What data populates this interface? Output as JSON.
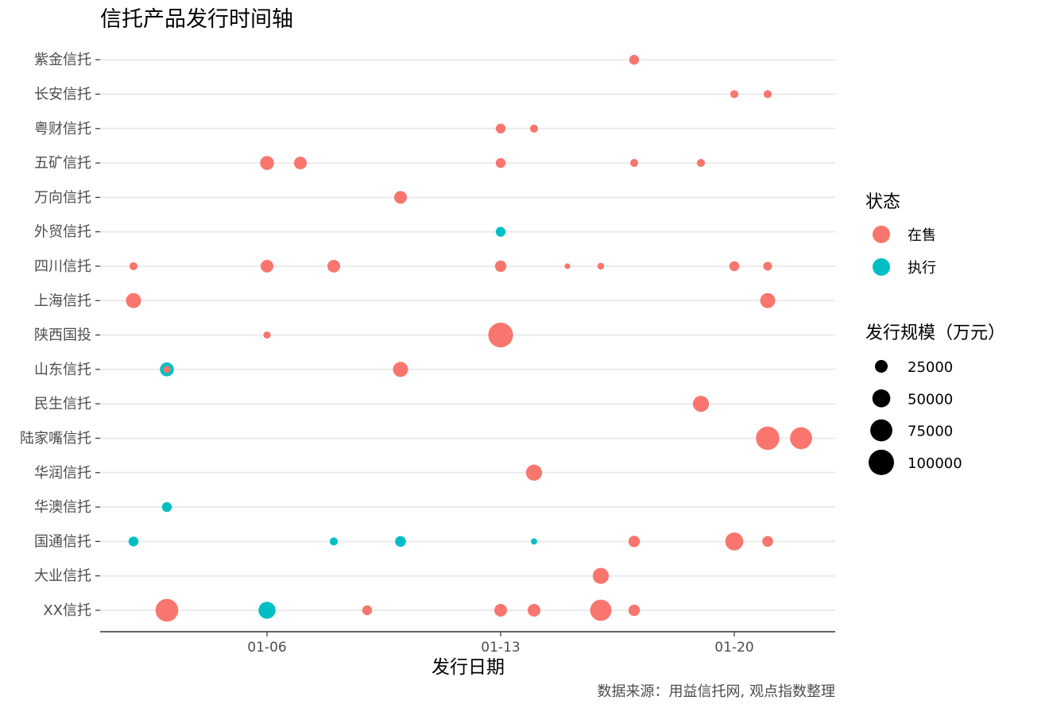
{
  "chart_data": {
    "type": "scatter",
    "title": "信托产品发行时间轴",
    "xlabel": "发行日期",
    "ylabel": "",
    "caption": "数据来源：用益信托网, 观点指数整理",
    "x_ticks": [
      "01-06",
      "01-13",
      "01-20"
    ],
    "xlim": [
      "01-01",
      "01-23"
    ],
    "categories": [
      "XX信托",
      "大业信托",
      "国通信托",
      "华澳信托",
      "华润信托",
      "陆家嘴信托",
      "民生信托",
      "山东信托",
      "陕西国投",
      "上海信托",
      "四川信托",
      "外贸信托",
      "万向信托",
      "五矿信托",
      "粤财信托",
      "长安信托",
      "紫金信托"
    ],
    "grid": "horizontal",
    "status_legend": {
      "title": "状态",
      "items": [
        {
          "label": "在售",
          "color": "#F8766D"
        },
        {
          "label": "执行",
          "color": "#00BFC4"
        }
      ]
    },
    "size_legend": {
      "title": "发行规模（万元）",
      "values": [
        25000,
        50000,
        75000,
        100000
      ]
    },
    "points": [
      {
        "issuer": "紫金信托",
        "date": "01-17",
        "status": "在售",
        "size": 15000
      },
      {
        "issuer": "长安信托",
        "date": "01-20",
        "status": "在售",
        "size": 10000
      },
      {
        "issuer": "长安信托",
        "date": "01-21",
        "status": "在售",
        "size": 10000
      },
      {
        "issuer": "粤财信托",
        "date": "01-13",
        "status": "在售",
        "size": 15000
      },
      {
        "issuer": "粤财信托",
        "date": "01-14",
        "status": "在售",
        "size": 10000
      },
      {
        "issuer": "五矿信托",
        "date": "01-06",
        "status": "在售",
        "size": 30000
      },
      {
        "issuer": "五矿信托",
        "date": "01-07",
        "status": "在售",
        "size": 25000
      },
      {
        "issuer": "五矿信托",
        "date": "01-13",
        "status": "在售",
        "size": 15000
      },
      {
        "issuer": "五矿信托",
        "date": "01-17",
        "status": "在售",
        "size": 10000
      },
      {
        "issuer": "五矿信托",
        "date": "01-19",
        "status": "在售",
        "size": 10000
      },
      {
        "issuer": "万向信托",
        "date": "01-10",
        "status": "在售",
        "size": 25000
      },
      {
        "issuer": "外贸信托",
        "date": "01-13",
        "status": "执行",
        "size": 15000
      },
      {
        "issuer": "四川信托",
        "date": "01-02",
        "status": "在售",
        "size": 10000
      },
      {
        "issuer": "四川信托",
        "date": "01-06",
        "status": "在售",
        "size": 25000
      },
      {
        "issuer": "四川信托",
        "date": "01-08",
        "status": "在售",
        "size": 25000
      },
      {
        "issuer": "四川信托",
        "date": "01-13",
        "status": "在售",
        "size": 20000
      },
      {
        "issuer": "四川信托",
        "date": "01-15",
        "status": "在售",
        "size": 5000
      },
      {
        "issuer": "四川信托",
        "date": "01-16",
        "status": "在售",
        "size": 7000
      },
      {
        "issuer": "四川信托",
        "date": "01-20",
        "status": "在售",
        "size": 15000
      },
      {
        "issuer": "四川信托",
        "date": "01-21",
        "status": "在售",
        "size": 12000
      },
      {
        "issuer": "上海信托",
        "date": "01-02",
        "status": "在售",
        "size": 35000
      },
      {
        "issuer": "上海信托",
        "date": "01-21",
        "status": "在售",
        "size": 35000
      },
      {
        "issuer": "陕西国投",
        "date": "01-06",
        "status": "在售",
        "size": 8000
      },
      {
        "issuer": "陕西国投",
        "date": "01-13",
        "status": "在售",
        "size": 95000
      },
      {
        "issuer": "山东信托",
        "date": "01-03",
        "status": "执行",
        "size": 30000
      },
      {
        "issuer": "山东信托",
        "date": "01-03",
        "status": "在售",
        "size": 8000
      },
      {
        "issuer": "山东信托",
        "date": "01-10",
        "status": "在售",
        "size": 35000
      },
      {
        "issuer": "民生信托",
        "date": "01-19",
        "status": "在售",
        "size": 40000
      },
      {
        "issuer": "陆家嘴信托",
        "date": "01-21",
        "status": "在售",
        "size": 85000
      },
      {
        "issuer": "陆家嘴信托",
        "date": "01-22",
        "status": "在售",
        "size": 75000
      },
      {
        "issuer": "华润信托",
        "date": "01-14",
        "status": "在售",
        "size": 40000
      },
      {
        "issuer": "华澳信托",
        "date": "01-03",
        "status": "执行",
        "size": 15000
      },
      {
        "issuer": "国通信托",
        "date": "01-02",
        "status": "执行",
        "size": 15000
      },
      {
        "issuer": "国通信托",
        "date": "01-08",
        "status": "执行",
        "size": 10000
      },
      {
        "issuer": "国通信托",
        "date": "01-10",
        "status": "执行",
        "size": 18000
      },
      {
        "issuer": "国通信托",
        "date": "01-14",
        "status": "执行",
        "size": 6000
      },
      {
        "issuer": "国通信托",
        "date": "01-17",
        "status": "在售",
        "size": 20000
      },
      {
        "issuer": "国通信托",
        "date": "01-20",
        "status": "在售",
        "size": 50000
      },
      {
        "issuer": "国通信托",
        "date": "01-21",
        "status": "在售",
        "size": 18000
      },
      {
        "issuer": "大业信托",
        "date": "01-16",
        "status": "在售",
        "size": 40000
      },
      {
        "issuer": "XX信托",
        "date": "01-03",
        "status": "在售",
        "size": 80000
      },
      {
        "issuer": "XX信托",
        "date": "01-06",
        "status": "执行",
        "size": 45000
      },
      {
        "issuer": "XX信托",
        "date": "01-09",
        "status": "在售",
        "size": 15000
      },
      {
        "issuer": "XX信托",
        "date": "01-13",
        "status": "在售",
        "size": 25000
      },
      {
        "issuer": "XX信托",
        "date": "01-14",
        "status": "在售",
        "size": 25000
      },
      {
        "issuer": "XX信托",
        "date": "01-16",
        "status": "在售",
        "size": 70000
      },
      {
        "issuer": "XX信托",
        "date": "01-17",
        "status": "在售",
        "size": 20000
      }
    ]
  }
}
